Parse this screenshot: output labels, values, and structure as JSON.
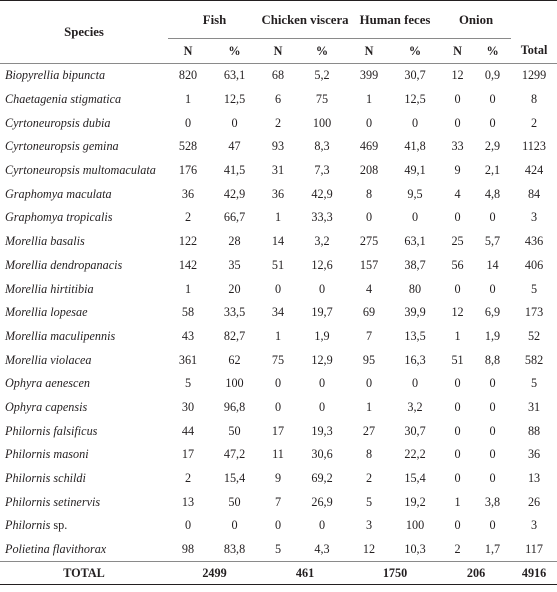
{
  "header": {
    "species": "Species",
    "groups": [
      "Fish",
      "Chicken viscera",
      "Human feces",
      "Onion"
    ],
    "sub_n": "N",
    "sub_pct": "%",
    "total": "Total"
  },
  "rows": [
    {
      "species": "Biopyrellia bipuncta",
      "fish_n": "820",
      "fish_p": "63,1",
      "chk_n": "68",
      "chk_p": "5,2",
      "hum_n": "399",
      "hum_p": "30,7",
      "oni_n": "12",
      "oni_p": "0,9",
      "total": "1299"
    },
    {
      "species": "Chaetagenia stigmatica",
      "fish_n": "1",
      "fish_p": "12,5",
      "chk_n": "6",
      "chk_p": "75",
      "hum_n": "1",
      "hum_p": "12,5",
      "oni_n": "0",
      "oni_p": "0",
      "total": "8"
    },
    {
      "species": "Cyrtoneuropsis dubia",
      "fish_n": "0",
      "fish_p": "0",
      "chk_n": "2",
      "chk_p": "100",
      "hum_n": "0",
      "hum_p": "0",
      "oni_n": "0",
      "oni_p": "0",
      "total": "2"
    },
    {
      "species": "Cyrtoneuropsis gemina",
      "fish_n": "528",
      "fish_p": "47",
      "chk_n": "93",
      "chk_p": "8,3",
      "hum_n": "469",
      "hum_p": "41,8",
      "oni_n": "33",
      "oni_p": "2,9",
      "total": "1123"
    },
    {
      "species": "Cyrtoneuropsis multomaculata",
      "fish_n": "176",
      "fish_p": "41,5",
      "chk_n": "31",
      "chk_p": "7,3",
      "hum_n": "208",
      "hum_p": "49,1",
      "oni_n": "9",
      "oni_p": "2,1",
      "total": "424"
    },
    {
      "species": "Graphomya maculata",
      "fish_n": "36",
      "fish_p": "42,9",
      "chk_n": "36",
      "chk_p": "42,9",
      "hum_n": "8",
      "hum_p": "9,5",
      "oni_n": "4",
      "oni_p": "4,8",
      "total": "84"
    },
    {
      "species": "Graphomya tropicalis",
      "fish_n": "2",
      "fish_p": "66,7",
      "chk_n": "1",
      "chk_p": "33,3",
      "hum_n": "0",
      "hum_p": "0",
      "oni_n": "0",
      "oni_p": "0",
      "total": "3"
    },
    {
      "species": "Morellia basalis",
      "fish_n": "122",
      "fish_p": "28",
      "chk_n": "14",
      "chk_p": "3,2",
      "hum_n": "275",
      "hum_p": "63,1",
      "oni_n": "25",
      "oni_p": "5,7",
      "total": "436"
    },
    {
      "species": "Morellia dendropanacis",
      "fish_n": "142",
      "fish_p": "35",
      "chk_n": "51",
      "chk_p": "12,6",
      "hum_n": "157",
      "hum_p": "38,7",
      "oni_n": "56",
      "oni_p": "14",
      "total": "406"
    },
    {
      "species": "Morellia hirtitibia",
      "fish_n": "1",
      "fish_p": "20",
      "chk_n": "0",
      "chk_p": "0",
      "hum_n": "4",
      "hum_p": "80",
      "oni_n": "0",
      "oni_p": "0",
      "total": "5"
    },
    {
      "species": "Morellia lopesae",
      "fish_n": "58",
      "fish_p": "33,5",
      "chk_n": "34",
      "chk_p": "19,7",
      "hum_n": "69",
      "hum_p": "39,9",
      "oni_n": "12",
      "oni_p": "6,9",
      "total": "173"
    },
    {
      "species": "Morellia maculipennis",
      "fish_n": "43",
      "fish_p": "82,7",
      "chk_n": "1",
      "chk_p": "1,9",
      "hum_n": "7",
      "hum_p": "13,5",
      "oni_n": "1",
      "oni_p": "1,9",
      "total": "52"
    },
    {
      "species": "Morellia violacea",
      "fish_n": "361",
      "fish_p": "62",
      "chk_n": "75",
      "chk_p": "12,9",
      "hum_n": "95",
      "hum_p": "16,3",
      "oni_n": "51",
      "oni_p": "8,8",
      "total": "582"
    },
    {
      "species": "Ophyra aenescen",
      "fish_n": "5",
      "fish_p": "100",
      "chk_n": "0",
      "chk_p": "0",
      "hum_n": "0",
      "hum_p": "0",
      "oni_n": "0",
      "oni_p": "0",
      "total": "5"
    },
    {
      "species": "Ophyra capensis",
      "fish_n": "30",
      "fish_p": "96,8",
      "chk_n": "0",
      "chk_p": "0",
      "hum_n": "1",
      "hum_p": "3,2",
      "oni_n": "0",
      "oni_p": "0",
      "total": "31"
    },
    {
      "species": "Philornis falsificus",
      "fish_n": "44",
      "fish_p": "50",
      "chk_n": "17",
      "chk_p": "19,3",
      "hum_n": "27",
      "hum_p": "30,7",
      "oni_n": "0",
      "oni_p": "0",
      "total": "88"
    },
    {
      "species": "Philornis masoni",
      "fish_n": "17",
      "fish_p": "47,2",
      "chk_n": "11",
      "chk_p": "30,6",
      "hum_n": "8",
      "hum_p": "22,2",
      "oni_n": "0",
      "oni_p": "0",
      "total": "36"
    },
    {
      "species": "Philornis schildi",
      "fish_n": "2",
      "fish_p": "15,4",
      "chk_n": "9",
      "chk_p": "69,2",
      "hum_n": "2",
      "hum_p": "15,4",
      "oni_n": "0",
      "oni_p": "0",
      "total": "13"
    },
    {
      "species": "Philornis setinervis",
      "fish_n": "13",
      "fish_p": "50",
      "chk_n": "7",
      "chk_p": "26,9",
      "hum_n": "5",
      "hum_p": "19,2",
      "oni_n": "1",
      "oni_p": "3,8",
      "total": "26"
    },
    {
      "species": "Philornis",
      "species_suffix": "sp.",
      "fish_n": "0",
      "fish_p": "0",
      "chk_n": "0",
      "chk_p": "0",
      "hum_n": "3",
      "hum_p": "100",
      "oni_n": "0",
      "oni_p": "0",
      "total": "3"
    },
    {
      "species": "Polietina flavithorax",
      "fish_n": "98",
      "fish_p": "83,8",
      "chk_n": "5",
      "chk_p": "4,3",
      "hum_n": "12",
      "hum_p": "10,3",
      "oni_n": "2",
      "oni_p": "1,7",
      "total": "117"
    }
  ],
  "totals": {
    "label": "TOTAL",
    "fish": "2499",
    "chicken": "461",
    "human": "1750",
    "onion": "206",
    "grand": "4916"
  }
}
